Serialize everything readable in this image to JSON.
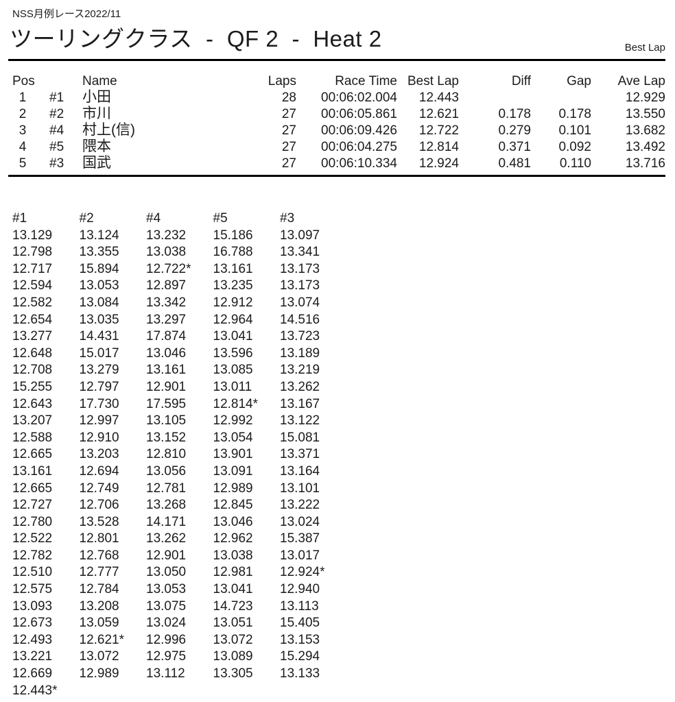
{
  "page": {
    "event_title": "NSS月例レース2022/11",
    "heading": "ツーリングクラス  -  QF 2  -  Heat 2",
    "corner_note": "Best Lap"
  },
  "results_table": {
    "headers": {
      "pos": "Pos",
      "name": "Name",
      "laps": "Laps",
      "race_time": "Race Time",
      "best_lap": "Best Lap",
      "diff": "Diff",
      "gap": "Gap",
      "ave_lap": "Ave Lap"
    },
    "rows": [
      {
        "pos": "1",
        "car_no": "#1",
        "name": "小田",
        "laps": "28",
        "race_time": "00:06:02.004",
        "best_lap": "12.443",
        "diff": "",
        "gap": "",
        "ave_lap": "12.929"
      },
      {
        "pos": "2",
        "car_no": "#2",
        "name": "市川",
        "laps": "27",
        "race_time": "00:06:05.861",
        "best_lap": "12.621",
        "diff": "0.178",
        "gap": "0.178",
        "ave_lap": "13.550"
      },
      {
        "pos": "3",
        "car_no": "#4",
        "name": "村上(信)",
        "laps": "27",
        "race_time": "00:06:09.426",
        "best_lap": "12.722",
        "diff": "0.279",
        "gap": "0.101",
        "ave_lap": "13.682"
      },
      {
        "pos": "4",
        "car_no": "#5",
        "name": "隈本",
        "laps": "27",
        "race_time": "00:06:04.275",
        "best_lap": "12.814",
        "diff": "0.371",
        "gap": "0.092",
        "ave_lap": "13.492"
      },
      {
        "pos": "5",
        "car_no": "#3",
        "name": "国武",
        "laps": "27",
        "race_time": "00:06:10.334",
        "best_lap": "12.924",
        "diff": "0.481",
        "gap": "0.110",
        "ave_lap": "13.716"
      }
    ]
  },
  "lap_chart": {
    "columns": [
      {
        "car_no": "#1",
        "laps": [
          "13.129",
          "12.798",
          "12.717",
          "12.594",
          "12.582",
          "12.654",
          "13.277",
          "12.648",
          "12.708",
          "15.255",
          "12.643",
          "13.207",
          "12.588",
          "12.665",
          "13.161",
          "12.665",
          "12.727",
          "12.780",
          "12.522",
          "12.782",
          "12.510",
          "12.575",
          "13.093",
          "12.673",
          "12.493",
          "13.221",
          "12.669",
          "12.443*"
        ]
      },
      {
        "car_no": "#2",
        "laps": [
          "13.124",
          "13.355",
          "15.894",
          "13.053",
          "13.084",
          "13.035",
          "14.431",
          "15.017",
          "13.279",
          "12.797",
          "17.730",
          "12.997",
          "12.910",
          "13.203",
          "12.694",
          "12.749",
          "12.706",
          "13.528",
          "12.801",
          "12.768",
          "12.777",
          "12.784",
          "13.208",
          "13.059",
          "12.621*",
          "13.072",
          "12.989"
        ]
      },
      {
        "car_no": "#4",
        "laps": [
          "13.232",
          "13.038",
          "12.722*",
          "12.897",
          "13.342",
          "13.297",
          "17.874",
          "13.046",
          "13.161",
          "12.901",
          "17.595",
          "13.105",
          "13.152",
          "12.810",
          "13.056",
          "12.781",
          "13.268",
          "14.171",
          "13.262",
          "12.901",
          "13.050",
          "13.053",
          "13.075",
          "13.024",
          "12.996",
          "12.975",
          "13.112"
        ]
      },
      {
        "car_no": "#5",
        "laps": [
          "15.186",
          "16.788",
          "13.161",
          "13.235",
          "12.912",
          "12.964",
          "13.041",
          "13.596",
          "13.085",
          "13.011",
          "12.814*",
          "12.992",
          "13.054",
          "13.901",
          "13.091",
          "12.989",
          "12.845",
          "13.046",
          "12.962",
          "13.038",
          "12.981",
          "13.041",
          "14.723",
          "13.051",
          "13.072",
          "13.089",
          "13.305"
        ]
      },
      {
        "car_no": "#3",
        "laps": [
          "13.097",
          "13.341",
          "13.173",
          "13.173",
          "13.074",
          "14.516",
          "13.723",
          "13.189",
          "13.219",
          "13.262",
          "13.167",
          "13.122",
          "15.081",
          "13.371",
          "13.164",
          "13.101",
          "13.222",
          "13.024",
          "15.387",
          "13.017",
          "12.924*",
          "12.940",
          "13.113",
          "15.405",
          "13.153",
          "15.294",
          "13.133"
        ]
      }
    ]
  },
  "colors": {
    "background": "#ffffff",
    "text": "#1b1b1b",
    "rule": "#000000"
  }
}
